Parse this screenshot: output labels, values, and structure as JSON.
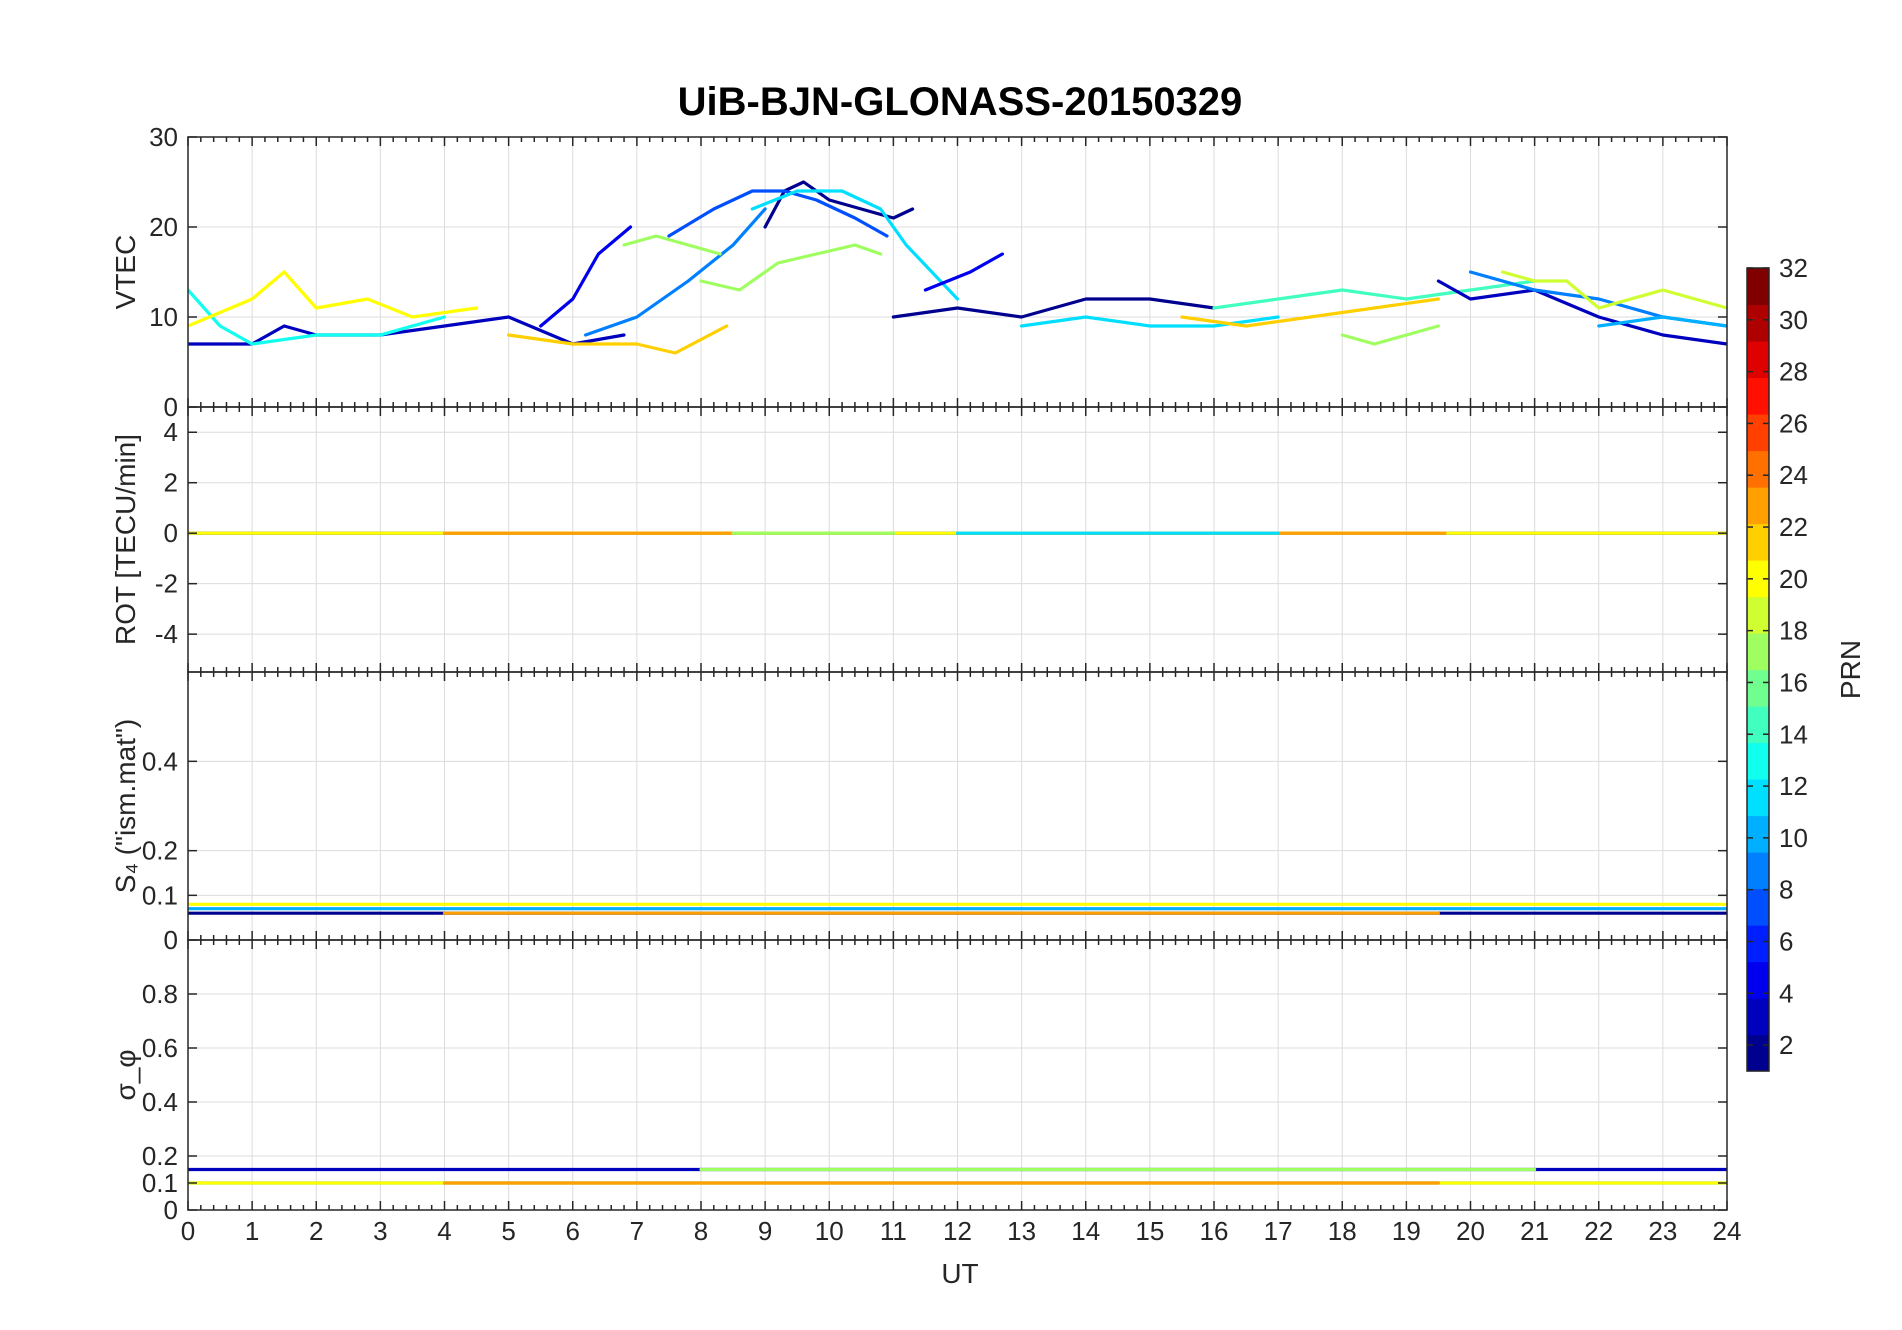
{
  "chart_data": {
    "type": "line",
    "title": "UiB-BJN-GLONASS-20150329",
    "xlabel": "UT",
    "xlim": [
      0,
      24
    ],
    "xticks": [
      0,
      1,
      2,
      3,
      4,
      5,
      6,
      7,
      8,
      9,
      10,
      11,
      12,
      13,
      14,
      15,
      16,
      17,
      18,
      19,
      20,
      21,
      22,
      23,
      24
    ],
    "grid": true,
    "colorbar": {
      "label": "PRN",
      "clim": [
        1,
        32
      ],
      "ticks": [
        2,
        4,
        6,
        8,
        10,
        12,
        14,
        16,
        18,
        20,
        22,
        24,
        26,
        28,
        30,
        32
      ],
      "colormap": "jet",
      "colors": [
        "#00008f",
        "#0000bf",
        "#0000ef",
        "#001fff",
        "#004fff",
        "#007fff",
        "#00afff",
        "#00dfff",
        "#10ffef",
        "#40ffbf",
        "#70ff8f",
        "#9fff60",
        "#cfff30",
        "#ffff00",
        "#ffcf00",
        "#ff9f00",
        "#ff7000",
        "#ff4000",
        "#ff1000",
        "#df0000",
        "#af0000",
        "#800000"
      ]
    },
    "panels": [
      {
        "id": "vtec",
        "ylabel": "VTEC",
        "ylim": [
          0,
          30
        ],
        "yticks": [
          0,
          10,
          20,
          30
        ],
        "series": [
          {
            "prn": 3,
            "x": [
              0,
              1,
              1.5,
              2,
              3,
              4,
              5,
              6,
              6.8
            ],
            "y": [
              7,
              7,
              9,
              8,
              8,
              9,
              10,
              7,
              8
            ]
          },
          {
            "prn": 2,
            "x": [
              9,
              9.3,
              9.6,
              10,
              10.5,
              11,
              11.3
            ],
            "y": [
              20,
              24,
              25,
              23,
              22,
              21,
              22
            ]
          },
          {
            "prn": 5,
            "x": [
              5.5,
              6,
              6.4,
              6.9
            ],
            "y": [
              9,
              12,
              17,
              20
            ]
          },
          {
            "prn": 8,
            "x": [
              7.5,
              8.2,
              8.8,
              9.3,
              9.8,
              10.4,
              10.9
            ],
            "y": [
              19,
              22,
              24,
              24,
              23,
              21,
              19
            ]
          },
          {
            "prn": 9,
            "x": [
              6.2,
              7,
              7.8,
              8.5,
              9
            ],
            "y": [
              8,
              10,
              14,
              18,
              22
            ]
          },
          {
            "prn": 12,
            "x": [
              8.8,
              9.5,
              10.2,
              10.8,
              11.2,
              12
            ],
            "y": [
              22,
              24,
              24,
              22,
              18,
              12
            ]
          },
          {
            "prn": 13,
            "x": [
              0,
              0.5,
              1,
              2,
              3,
              4
            ],
            "y": [
              13,
              9,
              7,
              8,
              8,
              10
            ]
          },
          {
            "prn": 17,
            "x": [
              6.8,
              7.3,
              7.8,
              8.3
            ],
            "y": [
              18,
              19,
              18,
              17
            ]
          },
          {
            "prn": 18,
            "x": [
              8,
              8.6,
              9.2,
              9.8,
              10.4,
              10.8
            ],
            "y": [
              14,
              13,
              16,
              17,
              18,
              17
            ]
          },
          {
            "prn": 22,
            "x": [
              5,
              6,
              7,
              7.6,
              8.4
            ],
            "y": [
              8,
              7,
              7,
              6,
              9
            ]
          },
          {
            "prn": 20,
            "x": [
              0,
              1,
              1.5,
              2,
              2.8,
              3.5,
              4.5
            ],
            "y": [
              9,
              12,
              15,
              11,
              12,
              10,
              11
            ]
          },
          {
            "prn": 2,
            "x": [
              11,
              12,
              13,
              14,
              15,
              16
            ],
            "y": [
              10,
              11,
              10,
              12,
              12,
              11
            ]
          },
          {
            "prn": 4,
            "x": [
              11.5,
              12.2,
              12.7
            ],
            "y": [
              13,
              15,
              17
            ]
          },
          {
            "prn": 12,
            "x": [
              13,
              14,
              15,
              16,
              17
            ],
            "y": [
              9,
              10,
              9,
              9,
              10
            ]
          },
          {
            "prn": 15,
            "x": [
              16,
              17,
              18,
              19,
              20,
              21
            ],
            "y": [
              11,
              12,
              13,
              12,
              13,
              14
            ]
          },
          {
            "prn": 22,
            "x": [
              15.5,
              16.5,
              17.5,
              18.5,
              19.5
            ],
            "y": [
              10,
              9,
              10,
              11,
              12
            ]
          },
          {
            "prn": 17,
            "x": [
              18,
              18.5,
              19,
              19.5
            ],
            "y": [
              8,
              7,
              8,
              9
            ]
          },
          {
            "prn": 3,
            "x": [
              19.5,
              20,
              21,
              22,
              23,
              24
            ],
            "y": [
              14,
              12,
              13,
              10,
              8,
              7
            ]
          },
          {
            "prn": 9,
            "x": [
              20,
              21,
              22,
              23,
              24
            ],
            "y": [
              15,
              13,
              12,
              10,
              9
            ]
          },
          {
            "prn": 19,
            "x": [
              20.5,
              21,
              21.5,
              22,
              23,
              24
            ],
            "y": [
              15,
              14,
              14,
              11,
              13,
              11
            ]
          },
          {
            "prn": 11,
            "x": [
              22,
              23,
              24
            ],
            "y": [
              9,
              10,
              9
            ]
          }
        ]
      },
      {
        "id": "rot",
        "ylabel": "ROT [TECU/min]",
        "ylim": [
          -5.5,
          5
        ],
        "yticks": [
          -4,
          -2,
          0,
          2,
          4
        ],
        "series": [
          {
            "prn": 2,
            "x": [
              0,
              2,
              4,
              6,
              8,
              10,
              12,
              14,
              16,
              18,
              20,
              22,
              24
            ],
            "y": [
              0,
              0,
              0,
              0,
              0,
              0,
              0,
              0,
              0,
              0,
              0,
              0,
              0
            ]
          },
          {
            "prn": 20,
            "x": [
              0,
              24
            ],
            "y": [
              0,
              0
            ]
          },
          {
            "prn": 23,
            "x": [
              4,
              8.7
            ],
            "y": [
              0,
              0
            ]
          },
          {
            "prn": 23,
            "x": [
              14,
              19.6
            ],
            "y": [
              0,
              0
            ]
          },
          {
            "prn": 17,
            "x": [
              8.5,
              11
            ],
            "y": [
              0,
              0
            ]
          },
          {
            "prn": 12,
            "x": [
              12,
              17
            ],
            "y": [
              0,
              0
            ]
          }
        ]
      },
      {
        "id": "s4",
        "ylabel": "S₄ (\"ism.mat\")",
        "ylim": [
          0,
          0.6
        ],
        "yticks": [
          0,
          0.1,
          0.2,
          0.4
        ],
        "series": [
          {
            "prn": 2,
            "x": [
              0,
              24
            ],
            "y": [
              0.06,
              0.06
            ]
          },
          {
            "prn": 11,
            "x": [
              0,
              24
            ],
            "y": [
              0.07,
              0.07
            ]
          },
          {
            "prn": 20,
            "x": [
              0,
              24
            ],
            "y": [
              0.08,
              0.08
            ]
          },
          {
            "prn": 23,
            "x": [
              4,
              19.5
            ],
            "y": [
              0.06,
              0.06
            ]
          }
        ]
      },
      {
        "id": "sigma_phi",
        "ylabel": "σ_φ",
        "ylim": [
          0,
          1
        ],
        "yticks": [
          0,
          0.1,
          0.2,
          0.4,
          0.6,
          0.8
        ],
        "series": [
          {
            "prn": 3,
            "x": [
              0,
              24
            ],
            "y": [
              0.15,
              0.15
            ]
          },
          {
            "prn": 11,
            "x": [
              0,
              24
            ],
            "y": [
              0.1,
              0.1
            ]
          },
          {
            "prn": 20,
            "x": [
              0,
              24
            ],
            "y": [
              0.1,
              0.1
            ]
          },
          {
            "prn": 23,
            "x": [
              4,
              19.5
            ],
            "y": [
              0.1,
              0.1
            ]
          },
          {
            "prn": 17,
            "x": [
              8,
              21
            ],
            "y": [
              0.15,
              0.15
            ]
          }
        ]
      }
    ]
  }
}
